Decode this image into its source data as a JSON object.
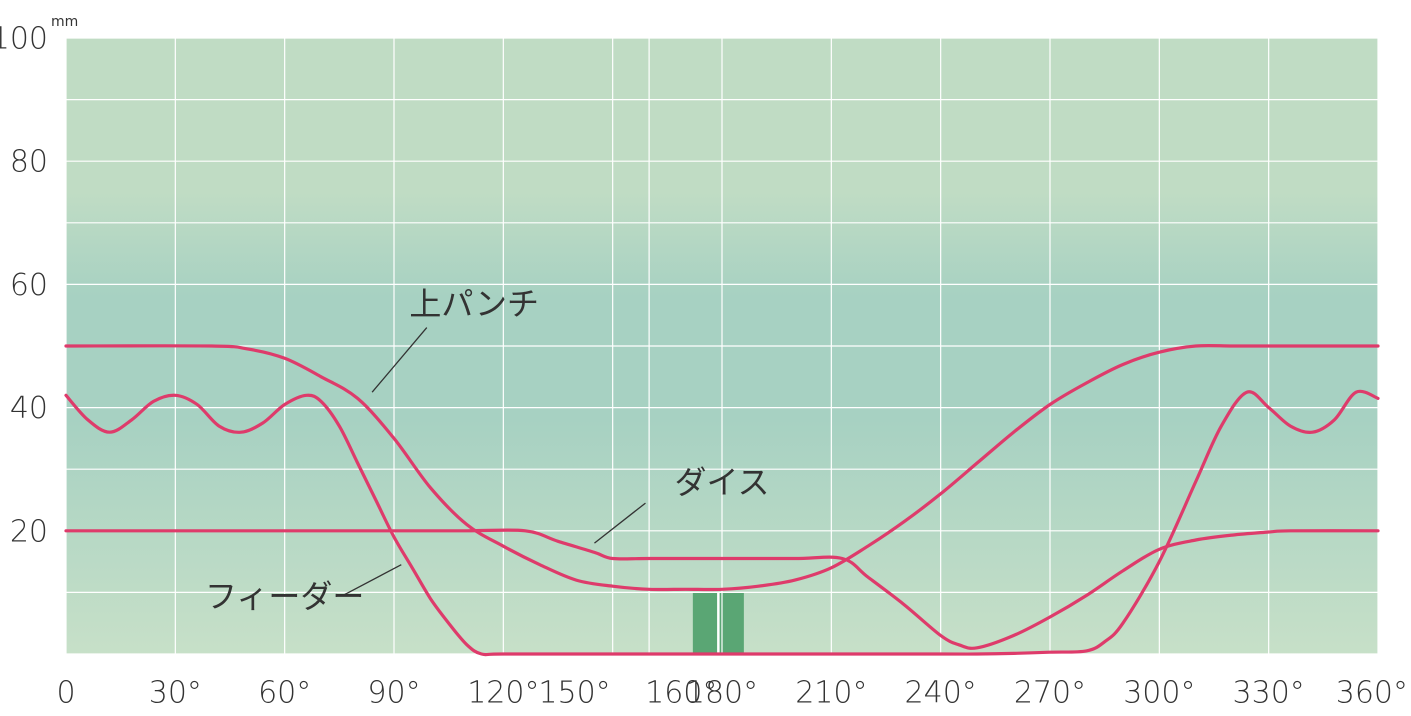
{
  "chart_data": {
    "type": "line",
    "title": "",
    "xlabel": "",
    "ylabel": "",
    "y_unit": "mm",
    "xlim": [
      0,
      360
    ],
    "ylim": [
      0,
      100
    ],
    "grid": true,
    "colors": {
      "background_top": "#c0dcc4",
      "background_band": "#a7d1c2",
      "background_bottom": "#c7e0c8",
      "grid": "#ffffff",
      "series": "#de3b6b",
      "highlight": "#5aa674",
      "text": "#333333"
    },
    "x_ticks": [
      {
        "value": 0,
        "label": "0"
      },
      {
        "value": 30,
        "label": "30°"
      },
      {
        "value": 60,
        "label": "60°"
      },
      {
        "value": 90,
        "label": "90°"
      },
      {
        "value": 120,
        "label": "120°"
      },
      {
        "value": 150,
        "label": "150°"
      },
      {
        "value": 160,
        "label": "160°"
      },
      {
        "value": 180,
        "label": "180°"
      },
      {
        "value": 210,
        "label": "210°"
      },
      {
        "value": 240,
        "label": "240°"
      },
      {
        "value": 270,
        "label": "270°"
      },
      {
        "value": 300,
        "label": "300°"
      },
      {
        "value": 330,
        "label": "330°"
      },
      {
        "value": 360,
        "label": "360°"
      }
    ],
    "y_ticks": [
      {
        "value": 20,
        "label": "20"
      },
      {
        "value": 40,
        "label": "40"
      },
      {
        "value": 60,
        "label": "60"
      },
      {
        "value": 80,
        "label": "80"
      },
      {
        "value": 100,
        "label": "100"
      }
    ],
    "grid_x": [
      0,
      30,
      60,
      90,
      120,
      150,
      160,
      180,
      210,
      240,
      270,
      300,
      330,
      360
    ],
    "grid_y": [
      0,
      10,
      20,
      30,
      40,
      50,
      60,
      70,
      80,
      90,
      100
    ],
    "highlight_range": [
      172,
      186
    ],
    "series": [
      {
        "name": "上パンチ",
        "x": [
          0,
          40,
          50,
          60,
          70,
          80,
          90,
          100,
          110,
          120,
          130,
          140,
          150,
          160,
          170,
          180,
          190,
          200,
          210,
          220,
          230,
          240,
          250,
          260,
          270,
          280,
          290,
          300,
          310,
          320,
          330,
          340,
          350,
          360
        ],
        "y": [
          50,
          50,
          49.5,
          48,
          45,
          41.5,
          35,
          27,
          21,
          17.5,
          14.5,
          12,
          11,
          10.5,
          10.5,
          10.5,
          11,
          12,
          14,
          17.5,
          21.5,
          26,
          31,
          36,
          40.5,
          44,
          47,
          49,
          50,
          50,
          50,
          50,
          50,
          50
        ]
      },
      {
        "name": "ダイス",
        "x": [
          0,
          30,
          60,
          90,
          110,
          126,
          135,
          145,
          150,
          160,
          180,
          200,
          213,
          220,
          230,
          240,
          245,
          250,
          260,
          270,
          280,
          290,
          300,
          310,
          320,
          330,
          336,
          360
        ],
        "y": [
          20,
          20,
          20,
          20,
          20,
          20,
          18.3,
          16.5,
          15.5,
          15.5,
          15.5,
          15.5,
          15.5,
          12.5,
          8,
          3,
          1.5,
          1,
          3,
          6,
          9.5,
          13.5,
          17,
          18.5,
          19.3,
          19.8,
          20,
          20
        ]
      },
      {
        "name": "フィーダー",
        "x": [
          0,
          6,
          12,
          18,
          24,
          30,
          36,
          42,
          48,
          54,
          60,
          66,
          70,
          75,
          80,
          85,
          90,
          95,
          100,
          105,
          110,
          114,
          120,
          150,
          180,
          210,
          240,
          250,
          260,
          270,
          280,
          285,
          290,
          300,
          310,
          317,
          324,
          330,
          336,
          342,
          348,
          354,
          360
        ],
        "y": [
          42,
          38,
          36,
          38,
          41,
          42,
          40.5,
          37,
          36,
          37.5,
          40.5,
          42,
          41,
          37,
          31,
          25,
          19,
          14,
          9,
          5,
          1.5,
          0,
          0,
          0,
          0,
          0,
          0,
          0,
          0.1,
          0.3,
          0.5,
          2,
          5,
          15,
          28,
          37,
          42.5,
          40,
          37,
          36,
          38,
          42.5,
          41.5
        ]
      }
    ],
    "annotations": [
      {
        "text": "上パンチ",
        "target_series": 0
      },
      {
        "text": "ダイス",
        "target_series": 1
      },
      {
        "text": "フィーダー",
        "target_series": 2
      }
    ]
  }
}
